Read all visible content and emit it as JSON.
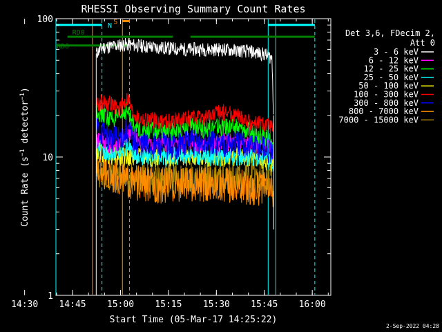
{
  "chart_data": {
    "type": "line",
    "title": "RHESSI Observing Summary Count Rates",
    "xlabel": "Start Time (05-Mar-17 14:25:22)",
    "ylabel": "Count Rate (s⁻¹ detector⁻¹)",
    "yscale": "log",
    "ylim": [
      1,
      100
    ],
    "xlim_minutes": [
      14.4,
      100.4
    ],
    "x_ticks": [
      "14:30",
      "14:45",
      "15:00",
      "15:15",
      "15:30",
      "15:45",
      "16:00"
    ],
    "x_tick_minutes": [
      4.6,
      19.6,
      34.6,
      49.6,
      64.6,
      79.6,
      94.6
    ],
    "y_ticks": [
      "1",
      "10",
      "100"
    ],
    "y_tick_values": [
      1,
      10,
      100
    ],
    "legend_header": [
      "Det 3,6, FDecim 2,",
      "Att 0"
    ],
    "legend_position": "right",
    "footer": "2-Sep-2022 04:28",
    "series": [
      {
        "name": "3 - 6 keV",
        "color": "#ffffff",
        "x": [
          27,
          29,
          32,
          36,
          40,
          45,
          55,
          65,
          75,
          80,
          82,
          82.5
        ],
        "y": [
          56,
          62,
          63,
          65,
          64,
          62,
          60,
          60,
          58,
          55,
          52,
          20
        ]
      },
      {
        "name": "6 - 12 keV",
        "color": "#ff00ff",
        "x": [
          27,
          28,
          32,
          36,
          38,
          40,
          44,
          48,
          52,
          56,
          60,
          64,
          68,
          72,
          76,
          80,
          82.5
        ],
        "y": [
          13,
          14,
          12,
          14,
          16,
          13,
          12,
          12.5,
          12,
          13,
          12.5,
          12.5,
          13,
          12.5,
          12.5,
          12,
          11
        ]
      },
      {
        "name": "12 - 25 keV",
        "color": "#00ff00",
        "x": [
          27,
          28,
          31,
          34,
          36.5,
          38,
          40,
          44,
          48,
          52,
          56,
          60,
          64,
          68,
          72,
          76,
          80,
          82.5
        ],
        "y": [
          22,
          21,
          19,
          19,
          22,
          18,
          16,
          15.5,
          15,
          15.5,
          17,
          16,
          16.5,
          16.5,
          16,
          15,
          14,
          12
        ]
      },
      {
        "name": "25 - 50 keV",
        "color": "#00ffff",
        "x": [
          27,
          30,
          34,
          37,
          40,
          45,
          50,
          55,
          60,
          65,
          70,
          75,
          80,
          82.5
        ],
        "y": [
          12,
          11,
          11,
          12,
          10,
          10,
          10,
          10.5,
          10,
          10,
          10,
          10,
          9.5,
          9
        ]
      },
      {
        "name": "50 - 100 keV",
        "color": "#ffff00",
        "x": [
          27,
          30,
          35,
          40,
          45,
          50,
          55,
          60,
          65,
          70,
          75,
          80,
          82.5
        ],
        "y": [
          11,
          10.5,
          10,
          10,
          10,
          10,
          10,
          10,
          10,
          10,
          10,
          9.5,
          9
        ]
      },
      {
        "name": "100 - 300 keV",
        "color": "#ff0000",
        "x": [
          27,
          29,
          32,
          34,
          36,
          37,
          38,
          40,
          44,
          48,
          52,
          56,
          60,
          63,
          66,
          68,
          71,
          75,
          80,
          82.5
        ],
        "y": [
          24,
          25,
          24,
          22,
          25,
          27,
          22,
          19,
          18.5,
          18,
          18.5,
          19,
          19,
          20,
          21,
          21,
          20,
          18,
          17,
          16
        ]
      },
      {
        "name": "300 - 800 keV",
        "color": "#0000ff",
        "x": [
          27,
          29,
          31,
          33,
          35,
          37,
          38,
          40,
          44,
          48,
          52,
          56,
          60,
          64,
          68,
          72,
          76,
          80,
          82.5
        ],
        "y": [
          16,
          15,
          14,
          13.5,
          14,
          16,
          14,
          12.5,
          12,
          12,
          12,
          13,
          12.5,
          12.5,
          12.5,
          12.5,
          12,
          11.5,
          10
        ]
      },
      {
        "name": "800 - 7000 keV",
        "color": "#ff8c00",
        "x": [
          27,
          29,
          32,
          35,
          38,
          40,
          45,
          50,
          55,
          60,
          65,
          70,
          75,
          80,
          82.5
        ],
        "y": [
          8.5,
          8,
          7.5,
          7,
          6.5,
          6.5,
          6.2,
          6.2,
          6.3,
          6.3,
          6.3,
          6.3,
          6,
          5.8,
          5.5
        ]
      },
      {
        "name": "7000 - 15000 keV",
        "color": "#aa8800",
        "x": [
          27,
          32,
          37,
          42,
          47,
          52,
          57,
          62,
          67,
          72,
          77,
          82.5
        ],
        "y": [
          8,
          7.5,
          7,
          7,
          7,
          7,
          7,
          7,
          7,
          7,
          7,
          6.5
        ]
      }
    ],
    "annotations": [
      {
        "label": "N",
        "color": "#00ffff",
        "x_start": 14.4,
        "x_end": 28.8,
        "y": 90
      },
      {
        "label": "",
        "color": "#00ffff",
        "x_start": 80.8,
        "x_end": 95.4,
        "y": 90
      },
      {
        "label": "S",
        "color": "#ff8c00",
        "x_start": 35.2,
        "x_end": 37.4,
        "y": 96
      },
      {
        "label": "RD0",
        "color": "#008000",
        "x_start": 18.0,
        "x_end": 51.0,
        "y": 74
      },
      {
        "label": "",
        "color": "#008000",
        "x_start": 56.5,
        "x_end": 95.4,
        "y": 74
      },
      {
        "label": "RD6",
        "color": "#008000",
        "x_start": 14.4,
        "x_end": 36.5,
        "y": 64
      }
    ],
    "vertical_lines": [
      {
        "x": 14.4,
        "color": "#00ffff",
        "style": "solid"
      },
      {
        "x": 25.8,
        "color": "#ff8c00",
        "style": "solid"
      },
      {
        "x": 28.8,
        "color": "#00ffff",
        "style": "dashed"
      },
      {
        "x": 35.2,
        "color": "#ff8c00",
        "style": "solid"
      },
      {
        "x": 37.4,
        "color": "#ff8c00",
        "style": "dashed"
      },
      {
        "x": 80.8,
        "color": "#00ffff",
        "style": "solid"
      },
      {
        "x": 83.2,
        "color": "#00ffff",
        "style": "solid"
      },
      {
        "x": 95.4,
        "color": "#00ffff",
        "style": "dashed"
      }
    ]
  }
}
